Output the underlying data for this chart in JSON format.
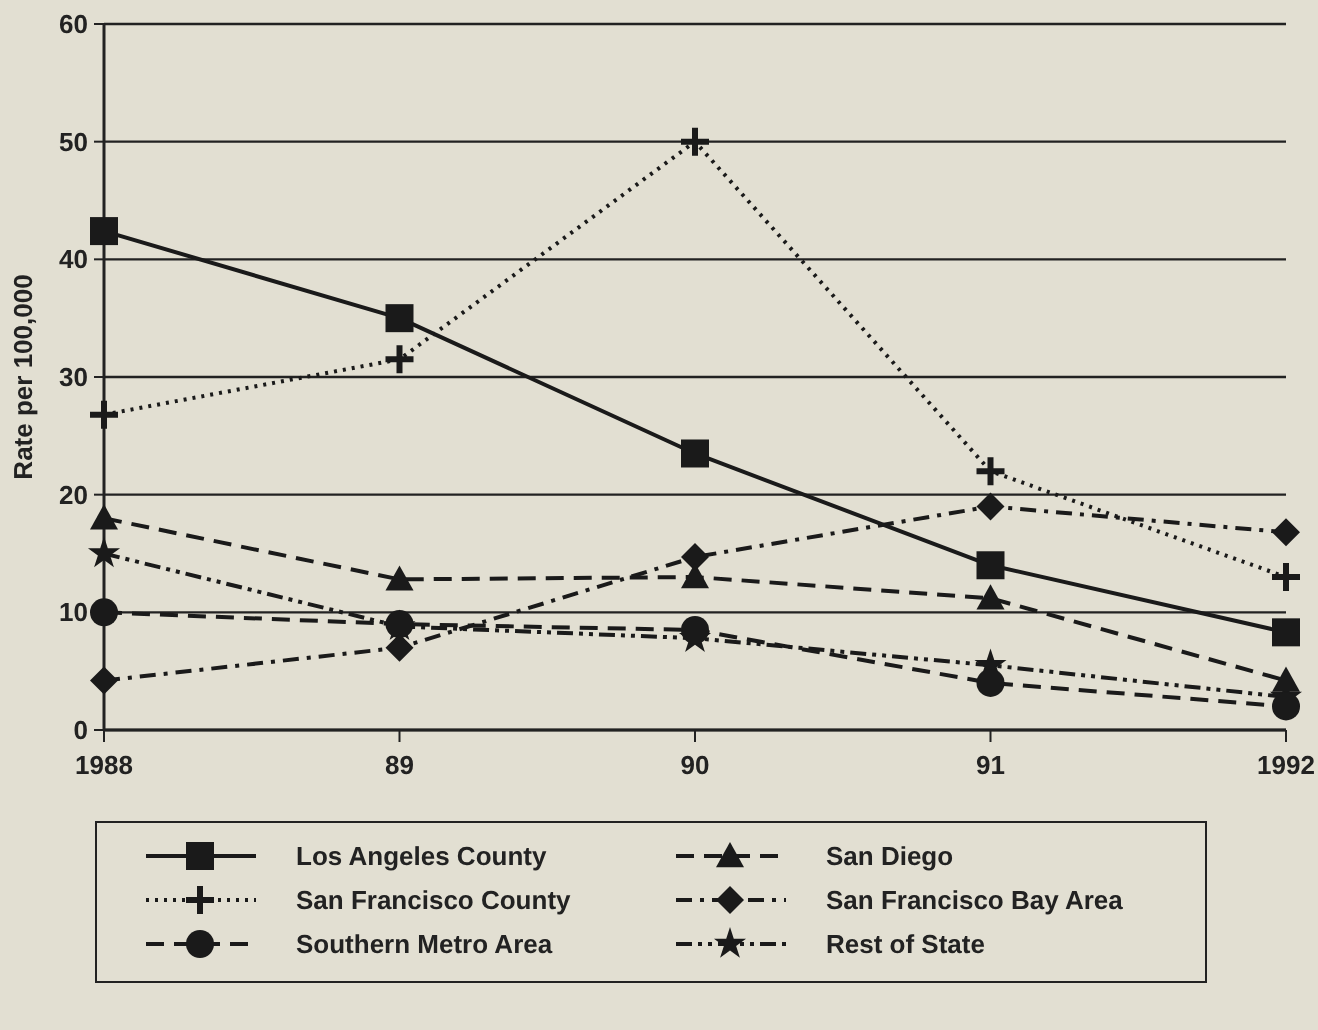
{
  "chart_data": {
    "type": "line",
    "ylabel": "Rate per 100,000",
    "x": [
      1988,
      1989,
      1990,
      1991,
      1992
    ],
    "xlim": [
      1988,
      1992
    ],
    "xticks": [
      1988,
      {
        "value": 1989,
        "label": "89"
      },
      {
        "value": 1990,
        "label": "90"
      },
      {
        "value": 1991,
        "label": "91"
      },
      1992
    ],
    "ylim": [
      0,
      60
    ],
    "yticks": [
      0,
      10,
      20,
      30,
      40,
      50,
      60
    ],
    "grid": "y",
    "legend": "bottom",
    "series": [
      {
        "name": "Los Angeles County",
        "color": "#1a1a1a",
        "marker": "square",
        "line_style": "solid",
        "values": [
          42.4,
          35,
          23.5,
          14,
          8.3
        ]
      },
      {
        "name": "San Diego",
        "color": "#1a1a1a",
        "marker": "triangle",
        "line_style": "dashed",
        "values": [
          18,
          12.8,
          13,
          11.2,
          4.2
        ]
      },
      {
        "name": "San Francisco County",
        "color": "#1a1a1a",
        "marker": "cross",
        "line_style": "dotted",
        "values": [
          26.8,
          31.5,
          50,
          22,
          13
        ]
      },
      {
        "name": "San Francisco Bay Area",
        "color": "#1a1a1a",
        "marker": "diamond",
        "line_style": "dashdot",
        "values": [
          4.2,
          7,
          14.7,
          19,
          16.8
        ]
      },
      {
        "name": "Southern Metro Area",
        "color": "#1a1a1a",
        "marker": "circle",
        "line_style": "dashed",
        "values": [
          10,
          9,
          8.5,
          4,
          2
        ]
      },
      {
        "name": "Rest of State",
        "color": "#1a1a1a",
        "marker": "star",
        "line_style": "dashdotdot",
        "values": [
          15,
          8.8,
          7.8,
          5.5,
          2.8
        ]
      }
    ]
  }
}
